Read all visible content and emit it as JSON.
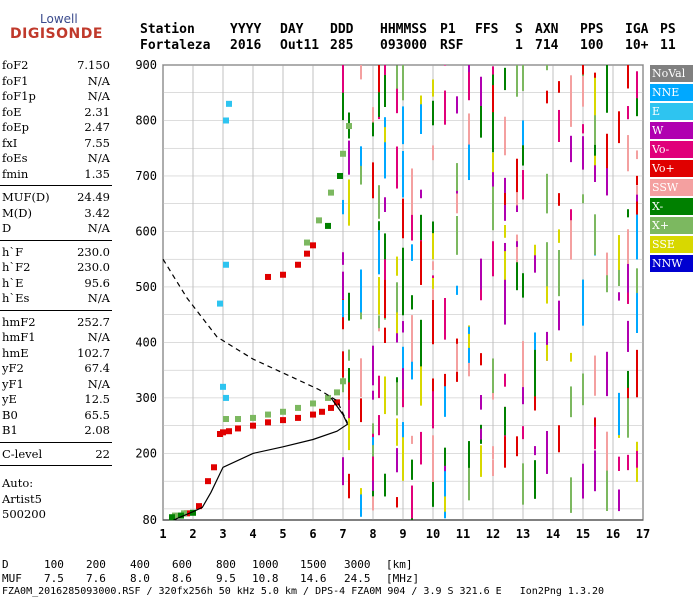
{
  "logo": {
    "line1": "Lowell",
    "line2": "DIGISONDE"
  },
  "header": {
    "labels": [
      "Station",
      "YYYY",
      "DAY",
      "DDD",
      "HHMMSS",
      "P1",
      "FFS",
      "S",
      "AXN",
      "PPS",
      "IGA",
      "PS"
    ],
    "values": [
      "Fortaleza",
      "2016",
      "Out11",
      "285",
      "093000",
      "RSF",
      "",
      "1",
      "714",
      "100",
      "10+",
      "11"
    ]
  },
  "params": [
    {
      "group": [
        {
          "k": "foF2",
          "v": "7.150"
        },
        {
          "k": "foF1",
          "v": "N/A"
        },
        {
          "k": "foF1p",
          "v": "N/A"
        },
        {
          "k": "foE",
          "v": "2.31"
        },
        {
          "k": "foEp",
          "v": "2.47"
        },
        {
          "k": "fxI",
          "v": "7.55"
        },
        {
          "k": "foEs",
          "v": "N/A"
        },
        {
          "k": "fmin",
          "v": "1.35"
        }
      ]
    },
    {
      "group": [
        {
          "k": "MUF(D)",
          "v": "24.49"
        },
        {
          "k": "M(D)",
          "v": "3.42"
        },
        {
          "k": "D",
          "v": "N/A"
        }
      ]
    },
    {
      "group": [
        {
          "k": "h`F",
          "v": "230.0"
        },
        {
          "k": "h`F2",
          "v": "230.0"
        },
        {
          "k": "h`E",
          "v": "95.6"
        },
        {
          "k": "h`Es",
          "v": "N/A"
        }
      ]
    },
    {
      "group": [
        {
          "k": "hmF2",
          "v": "252.7"
        },
        {
          "k": "hmF1",
          "v": "N/A"
        },
        {
          "k": "hmE",
          "v": "102.7"
        },
        {
          "k": "yF2",
          "v": "67.4"
        },
        {
          "k": "yF1",
          "v": "N/A"
        },
        {
          "k": "yE",
          "v": "12.5"
        },
        {
          "k": "B0",
          "v": "65.5"
        },
        {
          "k": "B1",
          "v": "2.08"
        }
      ]
    },
    {
      "group": [
        {
          "k": "C-level",
          "v": "22"
        }
      ]
    }
  ],
  "auto": {
    "line1": "Auto:",
    "line2": "Artist5",
    "line3": "500200"
  },
  "legend": [
    {
      "label": "NoVal",
      "color": "#808080"
    },
    {
      "label": "NNE",
      "color": "#00a8ff"
    },
    {
      "label": "E",
      "color": "#2ec4f0"
    },
    {
      "label": "W",
      "color": "#b000b0"
    },
    {
      "label": "Vo-",
      "color": "#e0007a"
    },
    {
      "label": "Vo+",
      "color": "#e00000"
    },
    {
      "label": "SSW",
      "color": "#f4a0a0"
    },
    {
      "label": "X-",
      "color": "#008000"
    },
    {
      "label": "X+",
      "color": "#7cb860"
    },
    {
      "label": "SSE",
      "color": "#d8d800"
    },
    {
      "label": "NNW",
      "color": "#0000d0"
    }
  ],
  "bottom": {
    "d_label": "D",
    "d_values": [
      "100",
      "200",
      "400",
      "600",
      "800",
      "1000",
      "1500",
      "3000",
      "[km]"
    ],
    "muf_label": "MUF",
    "muf_values": [
      "7.5",
      "7.6",
      "8.0",
      "8.6",
      "9.5",
      "10.8",
      "14.6",
      "24.5",
      "[MHz]"
    ],
    "footer": "FZA0M_2016285093000.RSF / 320fx256h 50 kHz 5.0 km / DPS-4 FZA0M 904 / 3.9 S 321.6 E   Ion2Png 1.3.20"
  },
  "chart_data": {
    "type": "scatter",
    "xlim": [
      1,
      17
    ],
    "ylim": [
      80,
      900
    ],
    "xticks": [
      1,
      2,
      3,
      4,
      5,
      6,
      7,
      8,
      9,
      10,
      11,
      12,
      13,
      14,
      15,
      16,
      17
    ],
    "yticks": [
      80,
      200,
      300,
      400,
      500,
      600,
      700,
      800,
      900
    ],
    "grid": true,
    "legend_position": "right",
    "series": [
      {
        "name": "Vo+",
        "color": "#e00000",
        "points": [
          [
            2.9,
            235
          ],
          [
            3.0,
            238
          ],
          [
            3.2,
            240
          ],
          [
            3.5,
            245
          ],
          [
            4.0,
            250
          ],
          [
            4.5,
            256
          ],
          [
            5.0,
            260
          ],
          [
            5.5,
            264
          ],
          [
            6.0,
            270
          ],
          [
            6.3,
            275
          ],
          [
            6.6,
            282
          ],
          [
            6.8,
            292
          ],
          [
            2.5,
            150
          ],
          [
            2.7,
            175
          ],
          [
            2.2,
            105
          ],
          [
            1.8,
            92
          ],
          [
            4.5,
            518
          ],
          [
            5.0,
            522
          ],
          [
            5.5,
            540
          ],
          [
            5.8,
            560
          ],
          [
            6.0,
            575
          ]
        ]
      },
      {
        "name": "X+",
        "color": "#7cb860",
        "points": [
          [
            3.1,
            262
          ],
          [
            3.5,
            262
          ],
          [
            4.0,
            264
          ],
          [
            4.5,
            270
          ],
          [
            5.0,
            275
          ],
          [
            5.5,
            282
          ],
          [
            6.0,
            290
          ],
          [
            6.5,
            300
          ],
          [
            6.8,
            310
          ],
          [
            7.0,
            330
          ],
          [
            1.4,
            88
          ],
          [
            1.7,
            92
          ],
          [
            5.8,
            580
          ],
          [
            6.2,
            620
          ],
          [
            6.6,
            670
          ],
          [
            7.0,
            740
          ],
          [
            7.2,
            790
          ]
        ]
      },
      {
        "name": "X-",
        "color": "#008000",
        "points": [
          [
            1.3,
            85
          ],
          [
            1.6,
            88
          ],
          [
            2.0,
            93
          ],
          [
            6.5,
            610
          ],
          [
            6.9,
            700
          ]
        ]
      },
      {
        "name": "E",
        "color": "#2ec4f0",
        "points": [
          [
            3.1,
            800
          ],
          [
            3.2,
            830
          ],
          [
            3.1,
            540
          ],
          [
            3.0,
            320
          ],
          [
            3.1,
            300
          ],
          [
            2.9,
            470
          ]
        ]
      }
    ],
    "curves": [
      {
        "name": "profile",
        "style": "solid",
        "points": [
          [
            1.35,
            80
          ],
          [
            2.0,
            95
          ],
          [
            2.31,
            102.7
          ],
          [
            2.6,
            130
          ],
          [
            3.0,
            175
          ],
          [
            4.0,
            200
          ],
          [
            5.0,
            212
          ],
          [
            6.0,
            225
          ],
          [
            6.8,
            240
          ],
          [
            7.15,
            252.7
          ],
          [
            7.0,
            270
          ],
          [
            6.6,
            300
          ]
        ]
      },
      {
        "name": "extrapolation",
        "style": "dashed",
        "points": [
          [
            1.0,
            550
          ],
          [
            1.8,
            480
          ],
          [
            2.8,
            410
          ],
          [
            4.0,
            370
          ],
          [
            5.2,
            340
          ],
          [
            6.2,
            315
          ],
          [
            6.8,
            295
          ],
          [
            7.15,
            255
          ]
        ]
      }
    ],
    "vertical_bands": [
      7.0,
      7.2,
      7.6,
      8.0,
      8.2,
      8.4,
      8.8,
      9.0,
      9.3,
      9.6,
      10.0,
      10.4,
      10.8,
      11.2,
      11.6,
      12.0,
      12.4,
      12.8,
      13.0,
      13.4,
      13.8,
      14.2,
      14.6,
      15.0,
      15.4,
      15.8,
      16.2,
      16.5,
      16.8
    ]
  }
}
